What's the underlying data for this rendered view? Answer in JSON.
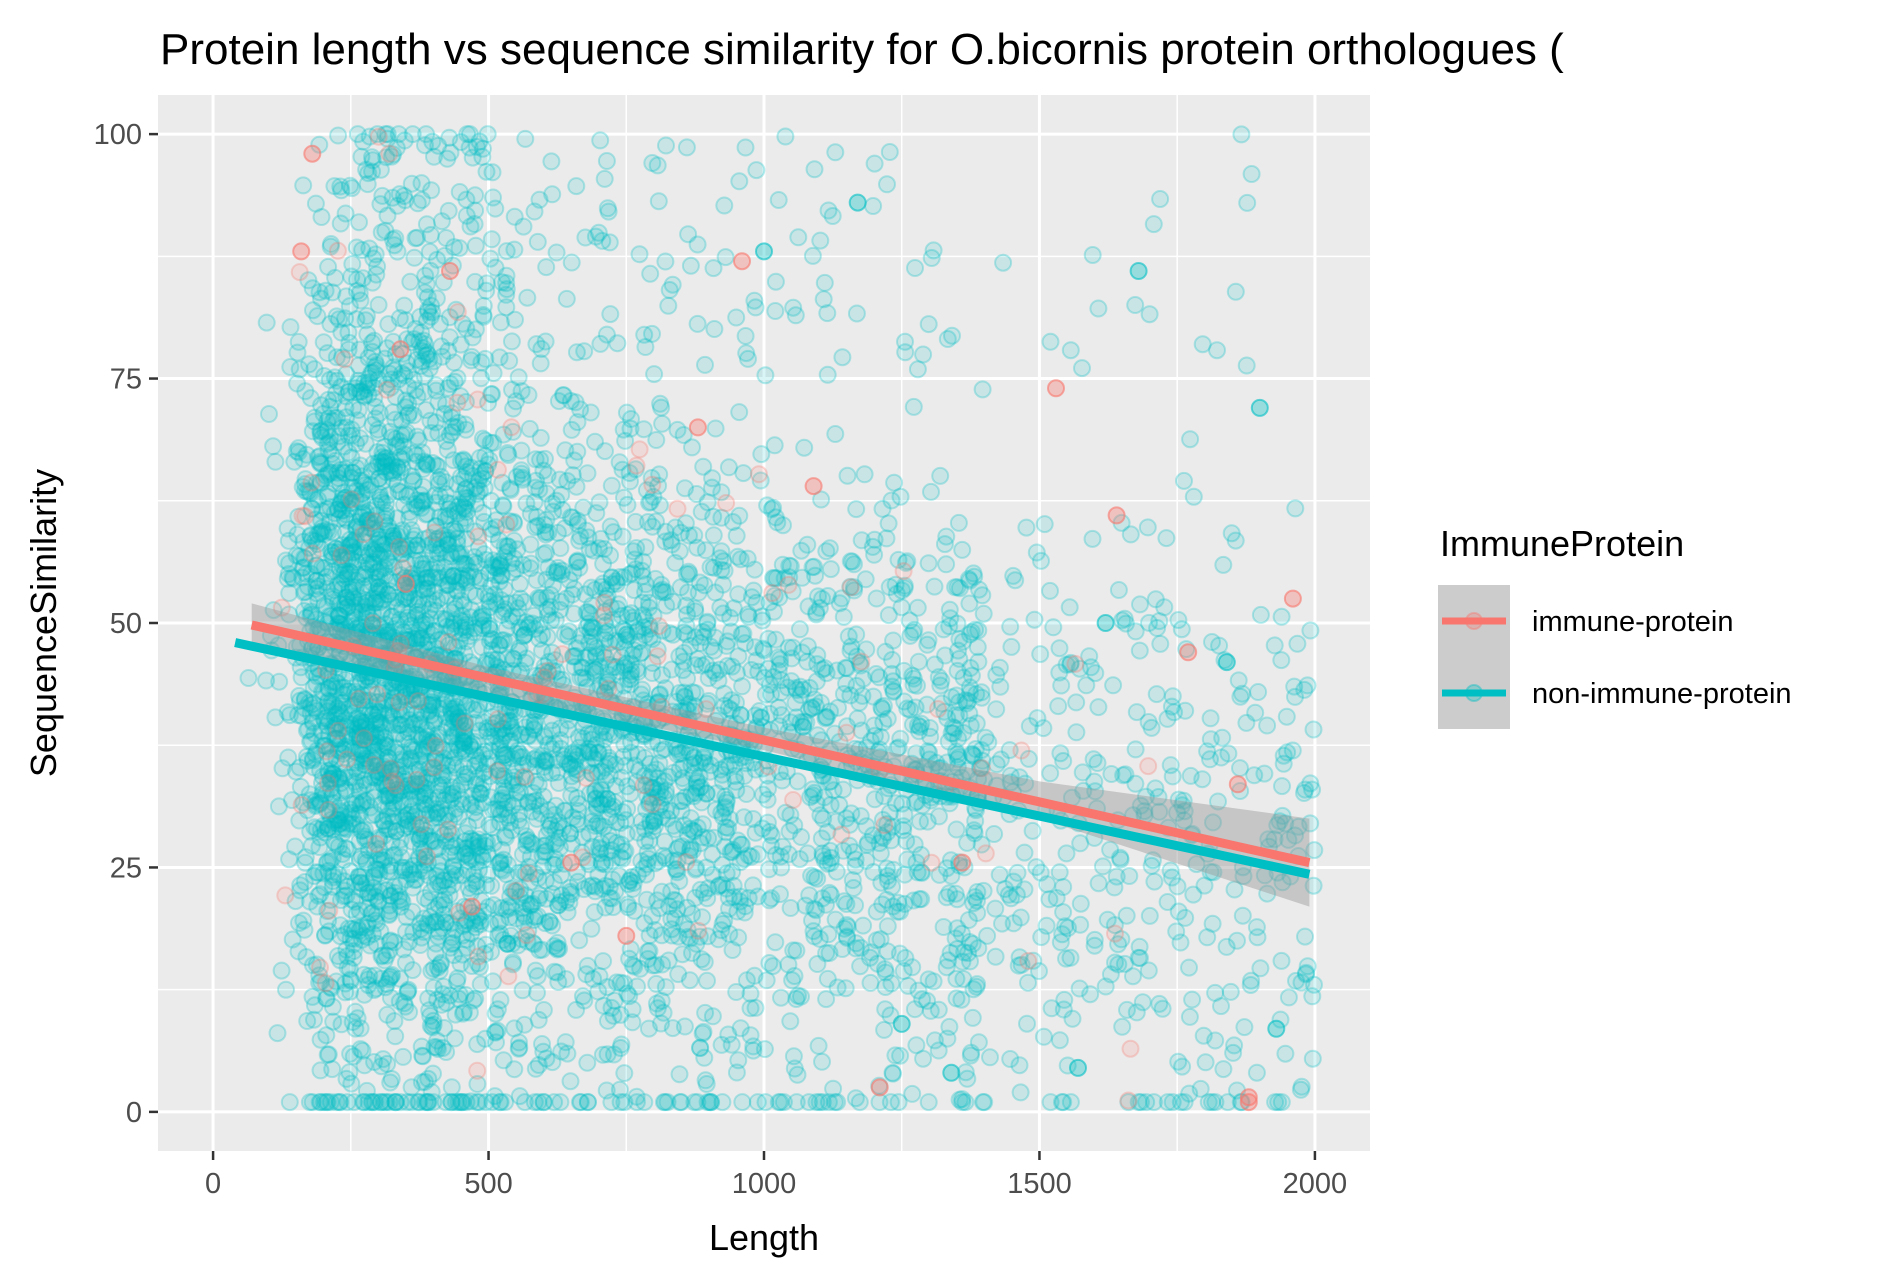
{
  "chart_data": {
    "type": "scatter",
    "title": "Protein length vs sequence similarity for O.bicornis protein orthologues (",
    "xlabel": "Length",
    "ylabel": "SequenceSimilarity",
    "xlim": [
      -100,
      2100
    ],
    "ylim": [
      -4,
      104
    ],
    "x_ticks": [
      0,
      500,
      1000,
      1500,
      2000
    ],
    "x_tick_labels": [
      "0",
      "500",
      "1000",
      "1500",
      "2000"
    ],
    "y_ticks": [
      0,
      25,
      50,
      75,
      100
    ],
    "y_tick_labels": [
      "0",
      "25",
      "50",
      "75",
      "100"
    ],
    "grid": true,
    "panel_background": "#ebebeb",
    "legend": {
      "title": "ImmuneProtein",
      "position": "right"
    },
    "series": [
      {
        "name": "immune-protein",
        "color": "#f8766d",
        "approx_point_count": 120,
        "fit_line": [
          [
            70,
            49.8
          ],
          [
            1990,
            25.5
          ]
        ],
        "confidence_band": {
          "x": [
            70,
            500,
            1000,
            1500,
            1990
          ],
          "lower": [
            47.5,
            42.8,
            37.0,
            30.0,
            21.0
          ],
          "upper": [
            52.0,
            45.5,
            39.3,
            33.8,
            30.0
          ]
        },
        "sample_points": [
          [
            160,
            88
          ],
          [
            180,
            98
          ],
          [
            1880,
            1
          ],
          [
            1880,
            1.5
          ],
          [
            1210,
            2.5
          ],
          [
            470,
            21
          ],
          [
            350,
            54
          ],
          [
            750,
            18
          ],
          [
            1530,
            74
          ],
          [
            1640,
            61
          ],
          [
            880,
            70
          ],
          [
            960,
            87
          ],
          [
            1860,
            33.5
          ],
          [
            1960,
            52.5
          ],
          [
            1770,
            47
          ],
          [
            650,
            25.5
          ],
          [
            430,
            86
          ],
          [
            340,
            78
          ],
          [
            1360,
            25.5
          ],
          [
            1090,
            64
          ]
        ]
      },
      {
        "name": "non-immune-protein",
        "color": "#00bfc4",
        "approx_point_count": 5200,
        "fit_line": [
          [
            40,
            48.0
          ],
          [
            1990,
            24.3
          ]
        ],
        "confidence_band": null,
        "sample_points": [
          [
            1000,
            88
          ],
          [
            1680,
            86
          ],
          [
            1170,
            93
          ],
          [
            1340,
            4
          ],
          [
            1570,
            4.5
          ],
          [
            1840,
            46
          ],
          [
            1900,
            72
          ],
          [
            1930,
            8.5
          ],
          [
            1250,
            9
          ],
          [
            1620,
            50
          ]
        ]
      }
    ]
  }
}
